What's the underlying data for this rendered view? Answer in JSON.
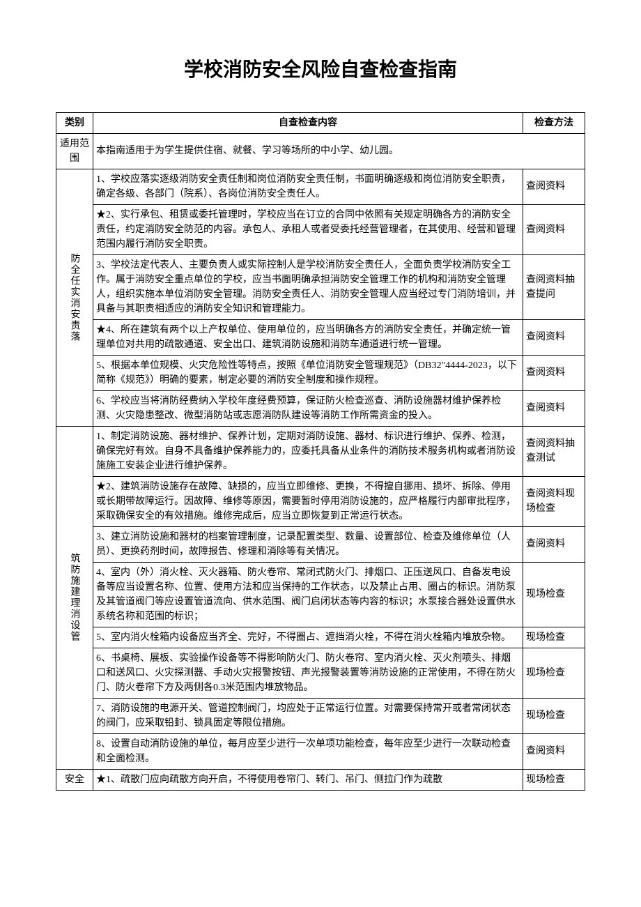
{
  "title": "学校消防安全风险自查检查指南",
  "headers": {
    "category": "类别",
    "content": "自查检查内容",
    "method": "检查方法"
  },
  "scope": {
    "label": "适用范围",
    "content": "本指南适用于为学生提供住宿、就餐、学习等场所的中小学、幼儿园。"
  },
  "section1": {
    "label": "防全任实消安责落",
    "rows": [
      {
        "content": "1、学校应落实逐级消防安全责任制和岗位消防安全责任制，书面明确逐级和岗位消防安全职责，确定各级、各部门（院系）、各岗位消防安全责任人。",
        "method": "查阅资料"
      },
      {
        "content": "★2、实行承包、租赁或委托管理时，学校应当在订立的合同中依照有关规定明确各方的消防安全责任，约定消防安全防范的内容。承包人、承租人或者受委托经营管理者，在其使用、经营和管理范围内履行消防安全职责。",
        "method": "查阅资料"
      },
      {
        "content": "3、学校法定代表人、主要负责人或实际控制人是学校消防安全责任人，全面负责学校消防安全工作。属于消防安全重点单位的学校，应当书面明确承担消防安全管理工作的机构和消防安全管理人，组织实施本单位消防安全管理。消防安全责任人、消防安全管理人应当经过专门消防培训，并具备与其职责相适应的消防安全知识和管理能力。",
        "method": "查阅资料抽查提问"
      },
      {
        "content": "★4、所在建筑有两个以上产权单位、使用单位的，应当明确各方的消防安全责任，并确定统一管理单位对共用的疏散通道、安全出口、建筑消防设施和消防车通道进行统一管理。",
        "method": "查阅资料"
      },
      {
        "content": "5、根据本单位规模、火灾危险性等特点，按照《单位消防安全管理规范》（DB32\"4444-2023，以下简称《规范》）明确的要素，制定必要的消防安全制度和操作规程。",
        "method": "查阅资料"
      },
      {
        "content": "6、学校应当将消防经费纳入学校年度经费预算，保证防火检查巡查、消防设施器材维护保养检测、火灾隐患整改、微型消防站或志愿消防队建设等消防工作所需资金的投入。",
        "method": "查阅资料"
      }
    ]
  },
  "section2": {
    "label": "筑防施建理消设管",
    "rows": [
      {
        "content": "1、制定消防设施、器材维护、保养计划，定期对消防设施、器材、标识进行维护、保养、检测，确保完好有效。自身不具备维护保养能力的，应委托具备从业条件的消防技术服务机构或者消防设施施工安装企业进行维护保养。",
        "method": "查阅资料抽查测试"
      },
      {
        "content": "★2、建筑消防设施存在故障、缺损的，应当立即维修、更换，不得擅自挪用、损坏、拆除、停用或长期带故障运行。因故障、维修等原因，需要暂时停用消防设施的，应严格履行内部审批程序，采取确保安全的有效措施。维修完成后，应当立即恢复到正常运行状态。",
        "method": "查阅资料现场检查"
      },
      {
        "content": "3、建立消防设施和器材的档案管理制度，记录配置类型、数量、设置部位、检查及维修单位（人员）、更换药剂时间，故障报告、修理和消除等有关情况。",
        "method": "查阅资料"
      },
      {
        "content": "4、室内（外）消火栓、灭火器箱、防火卷帘、常闭式防火门、排烟口、正压送风口、自备发电设备等应当设置名称、位置、使用方法和应当保持的工作状态，以及禁止占用、圈占的标识。消防泵及其管道阀门等应设置管道流向、供水范围、阀门启闭状态等内容的标识；水泵接合器处设置供水系统名称和范围的标识；",
        "method": "现场检查"
      },
      {
        "content": "5、室内消火栓箱内设备应当齐全、完好，不得圈占、遮挡消火栓，不得在消火栓箱内堆放杂物。",
        "method": "现场检查"
      },
      {
        "content": "6、书桌椅、展板、实验操作设备等不得影响防火门、防火卷帘、室内消火栓、灭火剂喷头、排烟口和送风口、火灾探测器、手动火灾报警按钮、声光报警装置等消防设施的正常使用，不得在防火门、防火卷帘下方及两侧各0.3米范围内堆放物品。",
        "method": "现场检查"
      },
      {
        "content": "7、消防设施的电源开关、管道控制阀门，均应处于正常运行位置。对需要保持常开或者常闭状态的阀门，应采取铅封、锁具固定等限位措施。",
        "method": "现场检查"
      },
      {
        "content": "8、设置自动消防设施的单位，每月应至少进行一次单项功能检查，每年应至少进行一次联动检查和全面检测。",
        "method": "查阅资料"
      }
    ]
  },
  "section3": {
    "label": "安全",
    "rows": [
      {
        "content": "★1、疏散门应向疏散方向开启，不得使用卷帘门、转门、吊门、侧拉门作为疏散",
        "method": "现场检查"
      }
    ]
  }
}
